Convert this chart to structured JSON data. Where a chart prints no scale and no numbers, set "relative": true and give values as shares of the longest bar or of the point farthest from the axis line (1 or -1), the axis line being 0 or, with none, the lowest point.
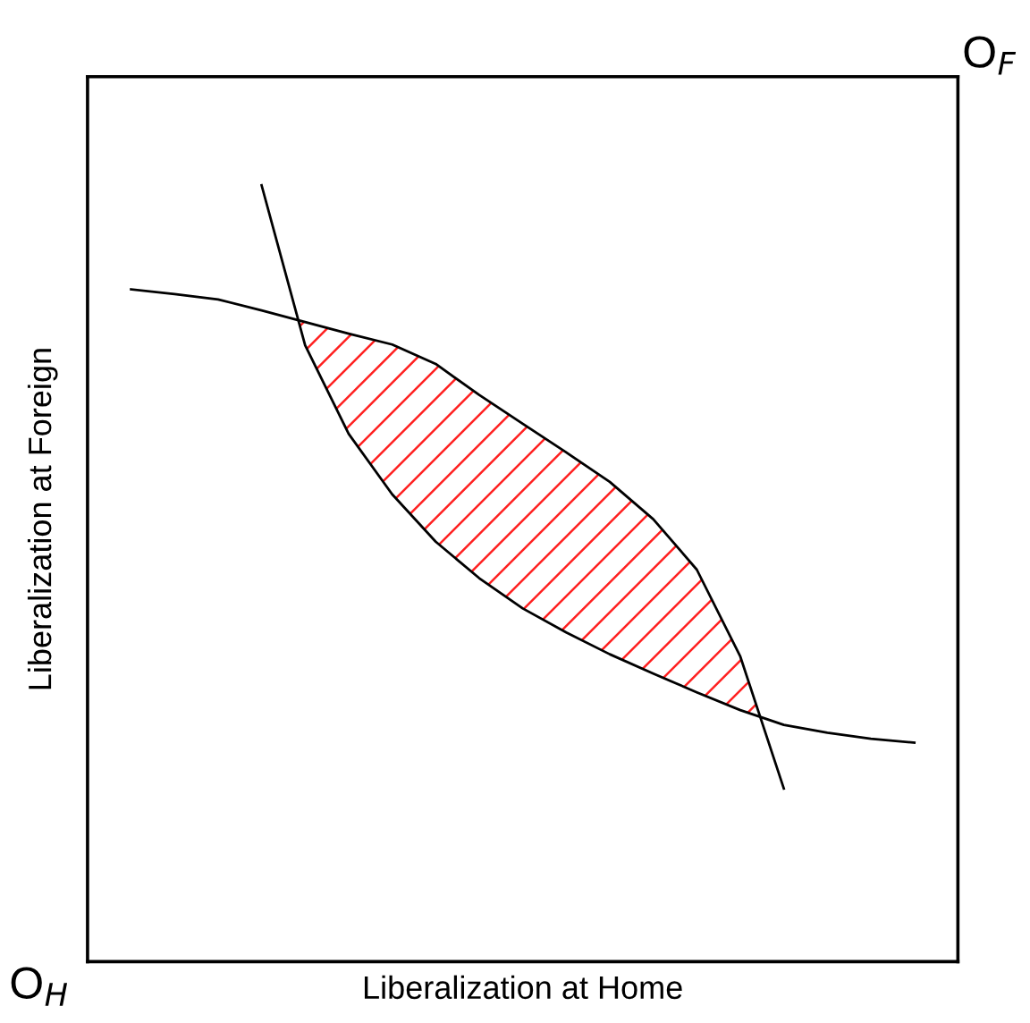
{
  "chart_data": {
    "type": "line",
    "relative": true,
    "xlabel": "Liberalization at Home",
    "ylabel": "Liberalization at Foreign",
    "legend": false,
    "categories": [
      null,
      null,
      null,
      null,
      null,
      null,
      null,
      null,
      null,
      null,
      null,
      null,
      null,
      null,
      null,
      null,
      null,
      null,
      null
    ],
    "series": [
      {
        "color": "#000000",
        "values": [
          0.866,
          0.86,
          0.853,
          0.839,
          0.824,
          0.809,
          0.795,
          0.77,
          0.73,
          0.693,
          0.656,
          0.618,
          0.57,
          0.505,
          0.393,
          0.223,
          null,
          null,
          null
        ]
      },
      {
        "color": "#000000",
        "values": [
          null,
          null,
          null,
          1.0,
          0.794,
          0.68,
          0.602,
          0.541,
          0.494,
          0.455,
          0.424,
          0.396,
          0.371,
          0.347,
          0.324,
          0.305,
          0.295,
          0.287,
          0.282
        ]
      }
    ],
    "annotations": [
      "O$_{H}$",
      "O$_{F}$"
    ]
  }
}
